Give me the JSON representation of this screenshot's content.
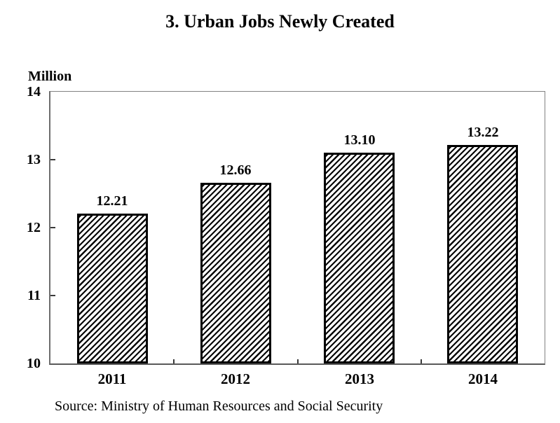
{
  "chart_data": {
    "type": "bar",
    "title": "3. Urban Jobs Newly Created",
    "categories": [
      "2011",
      "2012",
      "2013",
      "2014"
    ],
    "values": [
      12.21,
      12.66,
      13.1,
      13.22
    ],
    "value_labels": [
      "12.21",
      "12.66",
      "13.10",
      "13.22"
    ],
    "xlabel": "",
    "ylabel": "Million",
    "ylim": [
      10,
      14
    ],
    "yticks": [
      10,
      11,
      12,
      13,
      14
    ],
    "grid": false,
    "legend": false,
    "bar_pattern": "diagonal-hatch"
  },
  "source_note": "Source: Ministry of Human Resources and Social Security",
  "colors": {
    "background": "#ffffff",
    "text": "#000000",
    "bar_fill": "#ffffff",
    "bar_hatch": "#000000",
    "bar_border": "#000000",
    "axis_border": "#828282"
  }
}
